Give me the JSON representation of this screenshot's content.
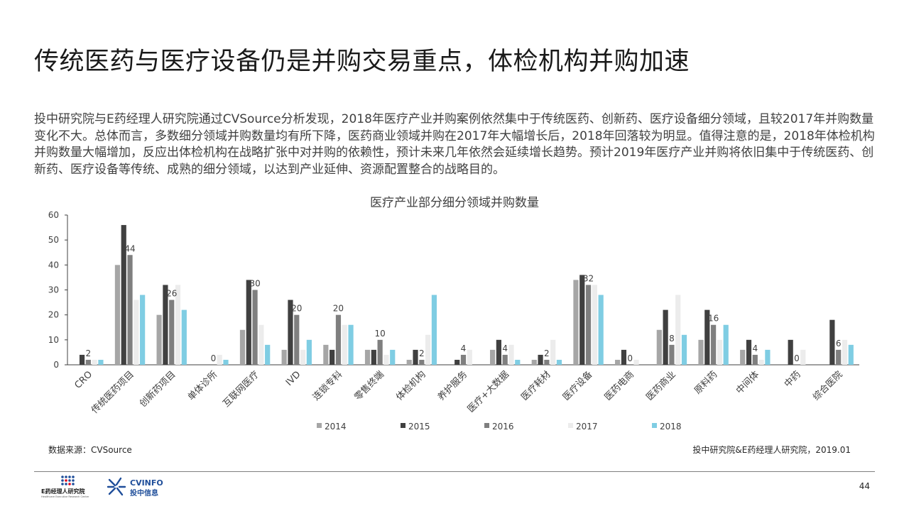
{
  "title": "传统医药与医疗设备仍是并购交易重点，体检机构并购加速",
  "body": "投中研究院与E药经理人研究院通过CVSource分析发现，2018年医疗产业并购案例依然集中于传统医药、创新药、医疗设备细分领域，且较2017年并购数量变化不大。总体而言，多数细分领域并购数量均有所下降，医药商业领域并购在2017年大幅增长后，2018年回落较为明显。值得注意的是，2018年体检机构并购数量大幅增加，反应出体检机构在战略扩张中对并购的依赖性，预计未来几年依然会延续增长趋势。预计2019年医疗产业并购将依旧集中于传统医药、创新药、医疗设备等传统、成熟的细分领域，以达到产业延伸、资源配置整合的战略目的。",
  "source_left": "数据来源：CVSource",
  "source_right": "投中研究院&E药经理人研究院，2019.01",
  "page_number": "44",
  "logos": {
    "left_text": "E药经理人研究院",
    "left_subtext": "Healthcare Executive Research Center",
    "right_text": "CVINFO",
    "right_subtext": "投中信息"
  },
  "chart_data": {
    "type": "bar",
    "title": "医疗产业部分细分领域并购数量",
    "categories": [
      "CRO",
      "传统医药项目",
      "创新药项目",
      "单体诊所",
      "互联网医疗",
      "IVD",
      "连锁专科",
      "零售终端",
      "体检机构",
      "养护服务",
      "医疗+大数据",
      "医疗耗材",
      "医疗设备",
      "医药电商",
      "医药商业",
      "原料药",
      "中间体",
      "中药",
      "综合医院"
    ],
    "series": [
      {
        "name": "2014",
        "color": "#a6a6a6",
        "values": [
          0,
          40,
          20,
          0,
          14,
          6,
          8,
          6,
          2,
          0,
          6,
          2,
          34,
          2,
          14,
          10,
          6,
          0,
          0
        ]
      },
      {
        "name": "2015",
        "color": "#404040",
        "values": [
          4,
          56,
          32,
          0,
          34,
          26,
          6,
          6,
          6,
          2,
          10,
          4,
          36,
          6,
          22,
          22,
          10,
          10,
          18
        ]
      },
      {
        "name": "2016",
        "color": "#7f7f7f",
        "values": [
          2,
          44,
          26,
          0,
          30,
          20,
          20,
          10,
          2,
          4,
          4,
          2,
          32,
          0,
          8,
          16,
          4,
          0,
          6
        ]
      },
      {
        "name": "2017",
        "color": "#ececec",
        "values": [
          2,
          26,
          32,
          4,
          16,
          6,
          16,
          4,
          12,
          6,
          8,
          10,
          32,
          2,
          28,
          10,
          2,
          6,
          10
        ]
      },
      {
        "name": "2018",
        "color": "#7fcde3",
        "values": [
          2,
          28,
          22,
          2,
          8,
          10,
          16,
          6,
          28,
          0,
          2,
          2,
          28,
          0,
          12,
          16,
          6,
          0,
          8
        ]
      }
    ],
    "data_labels": [
      {
        "category_index": 0,
        "series_index": 2,
        "text": "2"
      },
      {
        "category_index": 1,
        "series_index": 2,
        "text": "44"
      },
      {
        "category_index": 2,
        "series_index": 2,
        "text": "26"
      },
      {
        "category_index": 3,
        "series_index": 2,
        "text": "0"
      },
      {
        "category_index": 4,
        "series_index": 2,
        "text": "30"
      },
      {
        "category_index": 5,
        "series_index": 2,
        "text": "20"
      },
      {
        "category_index": 6,
        "series_index": 2,
        "text": "20"
      },
      {
        "category_index": 7,
        "series_index": 2,
        "text": "10"
      },
      {
        "category_index": 8,
        "series_index": 2,
        "text": "2"
      },
      {
        "category_index": 9,
        "series_index": 2,
        "text": "4"
      },
      {
        "category_index": 10,
        "series_index": 2,
        "text": "4"
      },
      {
        "category_index": 11,
        "series_index": 2,
        "text": "2"
      },
      {
        "category_index": 12,
        "series_index": 2,
        "text": "32"
      },
      {
        "category_index": 13,
        "series_index": 2,
        "text": "0"
      },
      {
        "category_index": 14,
        "series_index": 2,
        "text": "8"
      },
      {
        "category_index": 15,
        "series_index": 2,
        "text": "16"
      },
      {
        "category_index": 16,
        "series_index": 2,
        "text": "4"
      },
      {
        "category_index": 17,
        "series_index": 2,
        "text": "0"
      },
      {
        "category_index": 18,
        "series_index": 2,
        "text": "6"
      }
    ],
    "ylim": [
      0,
      60
    ],
    "yticks": [
      0,
      10,
      20,
      30,
      40,
      50,
      60
    ],
    "legend_position": "bottom",
    "grid": false
  }
}
